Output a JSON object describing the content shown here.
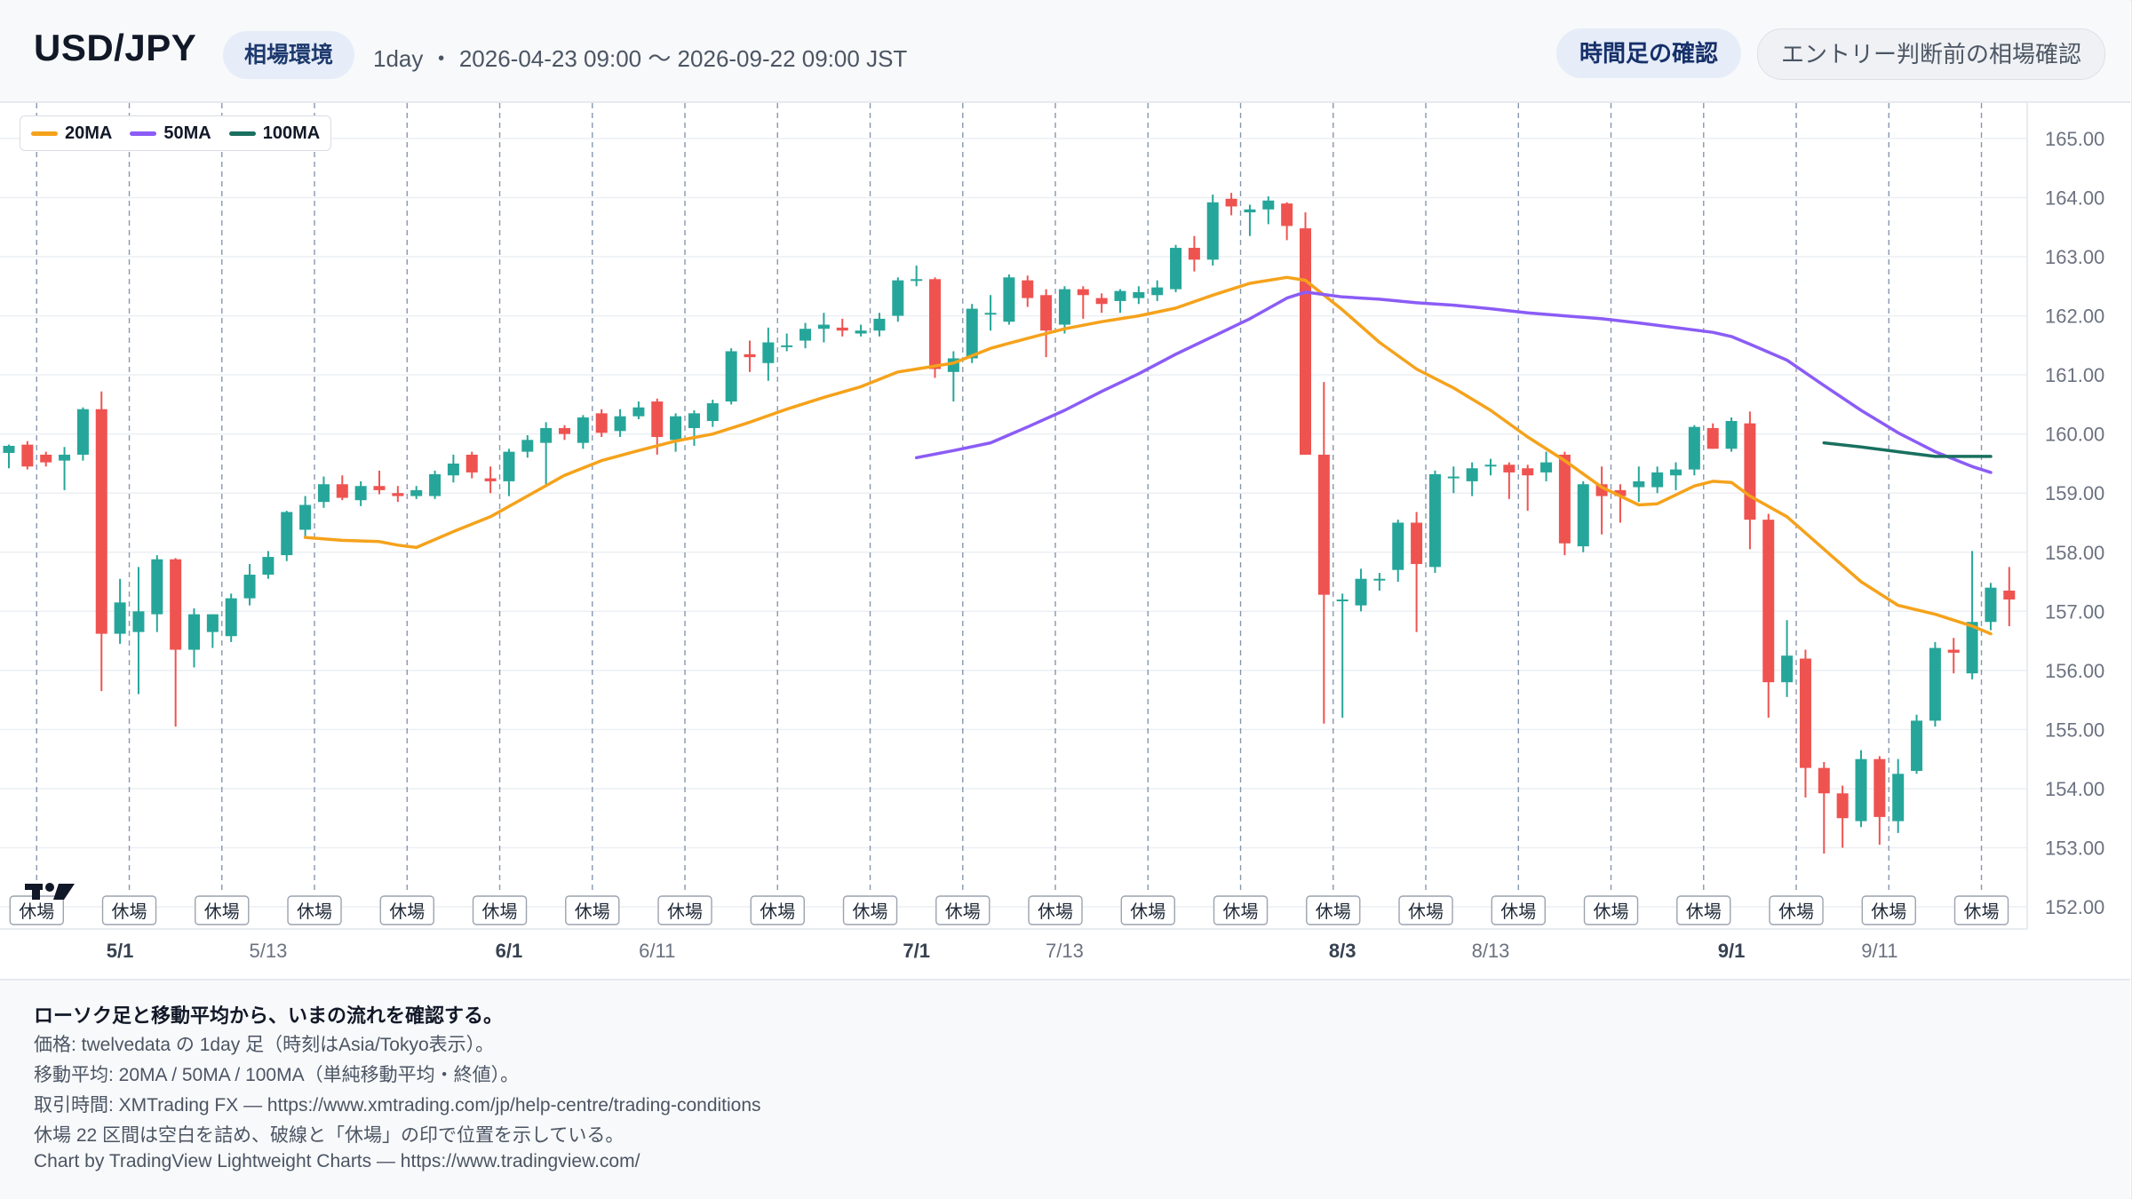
{
  "header": {
    "title": "USD/JPY",
    "badge": "相場環境",
    "meta": "1day ・ 2026-04-23 09:00 〜 2026-09-22 09:00 JST",
    "primary_button": "時間足の確認",
    "secondary_button": "エントリー判断前の相場確認"
  },
  "legend": [
    {
      "label": "20MA",
      "color": "#f5a21b"
    },
    {
      "label": "50MA",
      "color": "#8b5cf6"
    },
    {
      "label": "100MA",
      "color": "#19705f"
    }
  ],
  "colors": {
    "up": "#26a69a",
    "down": "#ef5350",
    "grid": "#eceff3",
    "text": "#6b7280"
  },
  "closed_label": "休場",
  "footer": {
    "heading": "ローソク足と移動平均から、いまの流れを確認する。",
    "lines": [
      "価格: twelvedata の 1day 足（時刻はAsia/Tokyo表示）。",
      "移動平均: 20MA / 50MA / 100MA（単純移動平均・終値）。",
      "取引時間: XMTrading FX — https://www.xmtrading.com/jp/help-centre/trading-conditions",
      "休場 22 区間は空白を詰め、破線と「休場」の印で位置を示している。",
      "Chart by TradingView Lightweight Charts — https://www.tradingview.com/"
    ]
  },
  "chart_data": {
    "type": "candlestick",
    "ylim": [
      151.7,
      165.6
    ],
    "y_ticks": [
      "152.00",
      "153.00",
      "154.00",
      "155.00",
      "156.00",
      "157.00",
      "158.00",
      "159.00",
      "160.00",
      "161.00",
      "162.00",
      "163.00",
      "164.00",
      "165.00"
    ],
    "x_ticks": [
      {
        "label": "5/1",
        "index": 6,
        "bold": true
      },
      {
        "label": "5/13",
        "index": 14,
        "bold": false
      },
      {
        "label": "6/1",
        "index": 27,
        "bold": true
      },
      {
        "label": "6/11",
        "index": 35,
        "bold": false
      },
      {
        "label": "7/1",
        "index": 49,
        "bold": true
      },
      {
        "label": "7/13",
        "index": 57,
        "bold": false
      },
      {
        "label": "8/3",
        "index": 72,
        "bold": true
      },
      {
        "label": "8/13",
        "index": 80,
        "bold": false
      },
      {
        "label": "9/1",
        "index": 93,
        "bold": true
      },
      {
        "label": "9/11",
        "index": 101,
        "bold": false
      }
    ],
    "closed_markers": [
      1.5,
      6.5,
      11.5,
      16.5,
      21.5,
      26.5,
      31.5,
      36.5,
      41.5,
      46.5,
      51.5,
      56.5,
      61.5,
      66.5,
      71.5,
      76.5,
      81.5,
      86.5,
      91.5,
      96.5,
      101.5,
      106.5
    ],
    "candles": [
      [
        159.68,
        159.82,
        159.42,
        159.8
      ],
      [
        159.82,
        159.88,
        159.4,
        159.45
      ],
      [
        159.65,
        159.7,
        159.45,
        159.52
      ],
      [
        159.55,
        159.78,
        159.05,
        159.65
      ],
      [
        159.65,
        160.45,
        159.55,
        160.42
      ],
      [
        160.42,
        160.72,
        155.65,
        156.62
      ],
      [
        156.62,
        157.55,
        156.45,
        157.15
      ],
      [
        156.65,
        157.75,
        155.6,
        157.0
      ],
      [
        156.95,
        157.95,
        156.65,
        157.88
      ],
      [
        157.88,
        157.9,
        155.05,
        156.35
      ],
      [
        156.35,
        157.05,
        156.05,
        156.95
      ],
      [
        156.65,
        156.95,
        156.38,
        156.95
      ],
      [
        156.58,
        157.3,
        156.48,
        157.22
      ],
      [
        157.22,
        157.8,
        157.1,
        157.62
      ],
      [
        157.62,
        158.02,
        157.55,
        157.92
      ],
      [
        157.95,
        158.7,
        157.85,
        158.68
      ],
      [
        158.38,
        158.95,
        158.25,
        158.8
      ],
      [
        158.85,
        159.28,
        158.75,
        159.15
      ],
      [
        159.15,
        159.3,
        158.88,
        158.92
      ],
      [
        158.88,
        159.2,
        158.78,
        159.12
      ],
      [
        159.12,
        159.38,
        158.98,
        159.05
      ],
      [
        159.0,
        159.12,
        158.85,
        158.95
      ],
      [
        158.95,
        159.12,
        158.9,
        159.05
      ],
      [
        158.95,
        159.38,
        158.9,
        159.32
      ],
      [
        159.3,
        159.65,
        159.18,
        159.5
      ],
      [
        159.65,
        159.7,
        159.25,
        159.35
      ],
      [
        159.25,
        159.45,
        159.0,
        159.2
      ],
      [
        159.2,
        159.75,
        158.95,
        159.7
      ],
      [
        159.7,
        159.98,
        159.6,
        159.9
      ],
      [
        159.85,
        160.2,
        159.15,
        160.1
      ],
      [
        160.1,
        160.15,
        159.9,
        160.0
      ],
      [
        159.85,
        160.32,
        159.75,
        160.28
      ],
      [
        160.35,
        160.42,
        159.95,
        160.02
      ],
      [
        160.05,
        160.42,
        159.95,
        160.3
      ],
      [
        160.3,
        160.55,
        160.25,
        160.45
      ],
      [
        160.55,
        160.6,
        159.65,
        159.95
      ],
      [
        159.9,
        160.35,
        159.7,
        160.3
      ],
      [
        160.1,
        160.4,
        159.8,
        160.35
      ],
      [
        160.22,
        160.58,
        160.12,
        160.52
      ],
      [
        160.55,
        161.45,
        160.5,
        161.4
      ],
      [
        161.35,
        161.58,
        161.05,
        161.3
      ],
      [
        161.2,
        161.8,
        160.9,
        161.55
      ],
      [
        161.48,
        161.7,
        161.4,
        161.5
      ],
      [
        161.58,
        161.88,
        161.45,
        161.78
      ],
      [
        161.78,
        162.05,
        161.55,
        161.85
      ],
      [
        161.8,
        161.95,
        161.65,
        161.75
      ],
      [
        161.7,
        161.85,
        161.65,
        161.75
      ],
      [
        161.75,
        162.05,
        161.65,
        161.95
      ],
      [
        162.0,
        162.65,
        161.9,
        162.6
      ],
      [
        162.6,
        162.85,
        162.5,
        162.62
      ],
      [
        162.62,
        162.65,
        160.95,
        161.1
      ],
      [
        161.05,
        161.4,
        160.55,
        161.28
      ],
      [
        161.28,
        162.2,
        161.2,
        162.12
      ],
      [
        162.05,
        162.35,
        161.75,
        162.05
      ],
      [
        161.9,
        162.7,
        161.85,
        162.65
      ],
      [
        162.6,
        162.68,
        162.15,
        162.3
      ],
      [
        162.35,
        162.45,
        161.3,
        161.75
      ],
      [
        161.85,
        162.5,
        161.7,
        162.45
      ],
      [
        162.45,
        162.5,
        161.95,
        162.35
      ],
      [
        162.3,
        162.38,
        162.05,
        162.2
      ],
      [
        162.25,
        162.45,
        162.05,
        162.42
      ],
      [
        162.3,
        162.5,
        162.2,
        162.4
      ],
      [
        162.35,
        162.6,
        162.25,
        162.48
      ],
      [
        162.45,
        163.2,
        162.4,
        163.15
      ],
      [
        163.15,
        163.35,
        162.75,
        162.95
      ],
      [
        162.95,
        164.05,
        162.85,
        163.92
      ],
      [
        163.98,
        164.08,
        163.7,
        163.85
      ],
      [
        163.75,
        163.88,
        163.35,
        163.8
      ],
      [
        163.8,
        164.02,
        163.55,
        163.95
      ],
      [
        163.9,
        163.92,
        163.28,
        163.52
      ],
      [
        163.48,
        163.75,
        159.65,
        159.65
      ],
      [
        159.65,
        160.88,
        155.1,
        157.28
      ],
      [
        157.18,
        157.3,
        155.2,
        157.2
      ],
      [
        157.1,
        157.72,
        157.0,
        157.55
      ],
      [
        157.55,
        157.65,
        157.35,
        157.55
      ],
      [
        157.7,
        158.55,
        157.5,
        158.5
      ],
      [
        158.5,
        158.68,
        156.65,
        157.8
      ],
      [
        157.75,
        159.38,
        157.65,
        159.32
      ],
      [
        159.28,
        159.45,
        159.0,
        159.28
      ],
      [
        159.2,
        159.52,
        158.95,
        159.42
      ],
      [
        159.45,
        159.58,
        159.3,
        159.48
      ],
      [
        159.48,
        159.52,
        158.9,
        159.35
      ],
      [
        159.42,
        159.48,
        158.7,
        159.3
      ],
      [
        159.35,
        159.7,
        159.2,
        159.52
      ],
      [
        159.65,
        159.7,
        157.95,
        158.15
      ],
      [
        158.1,
        159.2,
        158.0,
        159.15
      ],
      [
        159.15,
        159.45,
        158.3,
        158.95
      ],
      [
        159.05,
        159.15,
        158.5,
        158.95
      ],
      [
        159.1,
        159.45,
        158.85,
        159.2
      ],
      [
        159.1,
        159.45,
        159.0,
        159.35
      ],
      [
        159.3,
        159.52,
        159.05,
        159.4
      ],
      [
        159.4,
        160.15,
        159.3,
        160.12
      ],
      [
        160.1,
        160.18,
        159.75,
        159.75
      ],
      [
        159.75,
        160.28,
        159.7,
        160.22
      ],
      [
        160.18,
        160.38,
        158.05,
        158.55
      ],
      [
        158.55,
        158.65,
        155.2,
        155.8
      ],
      [
        155.8,
        156.85,
        155.55,
        156.25
      ],
      [
        156.2,
        156.35,
        153.85,
        154.35
      ],
      [
        154.35,
        154.45,
        152.9,
        153.92
      ],
      [
        153.92,
        154.05,
        153.0,
        153.5
      ],
      [
        153.45,
        154.65,
        153.35,
        154.5
      ],
      [
        154.5,
        154.55,
        153.05,
        153.52
      ],
      [
        153.45,
        154.5,
        153.25,
        154.25
      ],
      [
        154.3,
        155.25,
        154.25,
        155.15
      ],
      [
        155.15,
        156.48,
        155.05,
        156.38
      ],
      [
        156.35,
        156.55,
        155.95,
        156.3
      ],
      [
        155.95,
        158.02,
        155.85,
        156.82
      ],
      [
        156.82,
        157.48,
        156.68,
        157.4
      ],
      [
        157.35,
        157.75,
        156.75,
        157.2
      ]
    ],
    "ma20": [
      [
        16,
        158.25
      ],
      [
        18,
        158.2
      ],
      [
        20,
        158.18
      ],
      [
        21,
        158.12
      ],
      [
        22,
        158.08
      ],
      [
        24,
        158.35
      ],
      [
        26,
        158.6
      ],
      [
        28,
        158.95
      ],
      [
        30,
        159.3
      ],
      [
        32,
        159.55
      ],
      [
        34,
        159.72
      ],
      [
        36,
        159.88
      ],
      [
        38,
        160.0
      ],
      [
        40,
        160.2
      ],
      [
        42,
        160.42
      ],
      [
        44,
        160.62
      ],
      [
        46,
        160.8
      ],
      [
        48,
        161.05
      ],
      [
        49,
        161.1
      ],
      [
        51,
        161.2
      ],
      [
        53,
        161.45
      ],
      [
        55,
        161.62
      ],
      [
        57,
        161.78
      ],
      [
        59,
        161.9
      ],
      [
        61,
        162.0
      ],
      [
        63,
        162.13
      ],
      [
        65,
        162.35
      ],
      [
        67,
        162.55
      ],
      [
        69,
        162.65
      ],
      [
        70,
        162.6
      ],
      [
        72,
        162.1
      ],
      [
        74,
        161.55
      ],
      [
        76,
        161.1
      ],
      [
        78,
        160.78
      ],
      [
        80,
        160.4
      ],
      [
        82,
        159.95
      ],
      [
        84,
        159.55
      ],
      [
        86,
        159.1
      ],
      [
        88,
        158.8
      ],
      [
        89,
        158.82
      ],
      [
        91,
        159.12
      ],
      [
        92,
        159.2
      ],
      [
        93,
        159.18
      ],
      [
        94,
        158.95
      ],
      [
        96,
        158.6
      ],
      [
        98,
        158.05
      ],
      [
        100,
        157.5
      ],
      [
        102,
        157.1
      ],
      [
        104,
        156.95
      ],
      [
        106,
        156.75
      ],
      [
        107,
        156.62
      ]
    ],
    "ma50": [
      [
        49,
        159.6
      ],
      [
        51,
        159.72
      ],
      [
        53,
        159.85
      ],
      [
        55,
        160.12
      ],
      [
        57,
        160.4
      ],
      [
        59,
        160.72
      ],
      [
        61,
        161.02
      ],
      [
        63,
        161.35
      ],
      [
        65,
        161.65
      ],
      [
        67,
        161.95
      ],
      [
        69,
        162.3
      ],
      [
        70,
        162.4
      ],
      [
        72,
        162.32
      ],
      [
        74,
        162.28
      ],
      [
        76,
        162.22
      ],
      [
        78,
        162.18
      ],
      [
        80,
        162.12
      ],
      [
        82,
        162.05
      ],
      [
        84,
        162.0
      ],
      [
        86,
        161.95
      ],
      [
        88,
        161.88
      ],
      [
        90,
        161.8
      ],
      [
        92,
        161.72
      ],
      [
        93,
        161.65
      ],
      [
        94,
        161.52
      ],
      [
        96,
        161.25
      ],
      [
        98,
        160.82
      ],
      [
        100,
        160.4
      ],
      [
        102,
        160.02
      ],
      [
        104,
        159.7
      ],
      [
        106,
        159.45
      ],
      [
        107,
        159.35
      ]
    ],
    "ma100": [
      [
        98,
        159.85
      ],
      [
        100,
        159.78
      ],
      [
        102,
        159.7
      ],
      [
        104,
        159.62
      ],
      [
        106,
        159.62
      ],
      [
        107,
        159.62
      ]
    ]
  }
}
